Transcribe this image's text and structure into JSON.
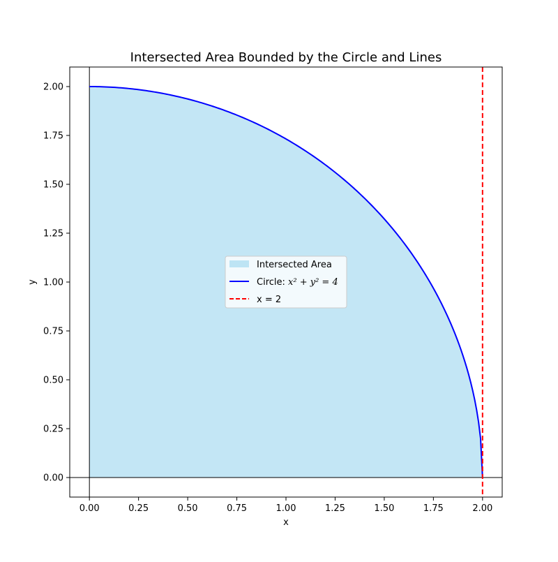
{
  "chart_data": {
    "type": "area",
    "title": "Intersected Area Bounded by the Circle and Lines",
    "xlabel": "x",
    "ylabel": "y",
    "xlim": [
      -0.1,
      2.1
    ],
    "ylim": [
      -0.1,
      2.1
    ],
    "xticks": [
      "0.00",
      "0.25",
      "0.50",
      "0.75",
      "1.00",
      "1.25",
      "1.50",
      "1.75",
      "2.00"
    ],
    "yticks": [
      "0.00",
      "0.25",
      "0.50",
      "0.75",
      "1.00",
      "1.25",
      "1.50",
      "1.75",
      "2.00"
    ],
    "xtick_values": [
      0,
      0.25,
      0.5,
      0.75,
      1.0,
      1.25,
      1.5,
      1.75,
      2.0
    ],
    "ytick_values": [
      0,
      0.25,
      0.5,
      0.75,
      1.0,
      1.25,
      1.5,
      1.75,
      2.0
    ],
    "grid": false,
    "legend_position": "center",
    "series": [
      {
        "name": "Intersected Area",
        "kind": "fill",
        "color": "#87ceeb",
        "opacity": 0.5,
        "radius": 2,
        "x_range": [
          0,
          2
        ]
      },
      {
        "name": "Circle: x^2 + y^2 = 4",
        "kind": "line",
        "color": "#0000ff",
        "radius": 2,
        "x_range": [
          0,
          2
        ]
      },
      {
        "name": "x = 2",
        "kind": "vline",
        "color": "#ff0000",
        "linestyle": "dashed",
        "x": 2
      }
    ],
    "reference_lines": [
      {
        "kind": "hline",
        "y": 0,
        "color": "#000000"
      },
      {
        "kind": "vline",
        "x": 0,
        "color": "#000000"
      }
    ],
    "legend": {
      "fill_label": "Intersected Area",
      "circle_prefix": "Circle: ",
      "circle_math": "x² + y² = 4",
      "vline_label": "x = 2"
    }
  }
}
